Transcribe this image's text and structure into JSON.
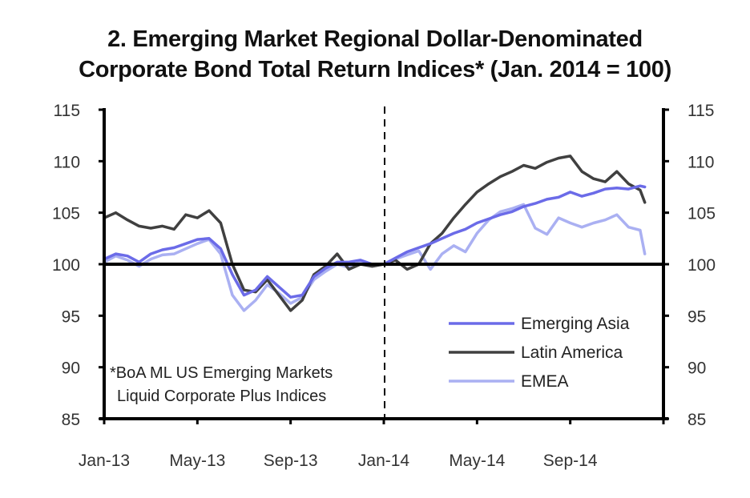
{
  "chart_data": {
    "type": "line",
    "title_line1": "2. Emerging Market Regional Dollar-Denominated",
    "title_line2": "Corporate Bond Total Return Indices* (Jan. 2014 = 100)",
    "xlabel": "",
    "ylabel": "",
    "ylim": [
      85,
      115
    ],
    "yticks": [
      "85",
      "90",
      "95",
      "100",
      "105",
      "110",
      "115"
    ],
    "ytick_values": [
      85,
      90,
      95,
      100,
      105,
      110,
      115
    ],
    "xticks": [
      "Jan-13",
      "May-13",
      "Sep-13",
      "Jan-14",
      "May-14",
      "Sep-14"
    ],
    "xtick_months": [
      0,
      4,
      8,
      12,
      16,
      20
    ],
    "xlim_months": [
      0,
      24
    ],
    "reference_line_y": 100,
    "vertical_marker": {
      "label": "Jan-14",
      "month": 12,
      "style": "dashed"
    },
    "grid": false,
    "legend_position": "bottom-right",
    "footnote_line1": "*BoA ML US Emerging Markets",
    "footnote_line2": "Liquid Corporate Plus Indices",
    "x_months": [
      0,
      0.5,
      1,
      1.5,
      2,
      2.5,
      3,
      3.5,
      4,
      4.5,
      5,
      5.5,
      6,
      6.5,
      7,
      7.5,
      8,
      8.5,
      9,
      9.5,
      10,
      10.5,
      11,
      11.5,
      12,
      12.5,
      13,
      13.5,
      14,
      14.5,
      15,
      15.5,
      16,
      16.5,
      17,
      17.5,
      18,
      18.5,
      19,
      19.5,
      20,
      20.5,
      21,
      21.5,
      22,
      22.5,
      23,
      23.2
    ],
    "series": [
      {
        "name": "Emerging Asia",
        "color": "#6b6be8",
        "values": [
          100.5,
          101.0,
          100.8,
          100.2,
          101.0,
          101.4,
          101.6,
          102.0,
          102.4,
          102.5,
          101.5,
          99.0,
          97.0,
          97.5,
          98.8,
          97.8,
          96.8,
          97.0,
          98.8,
          99.6,
          100.2,
          100.2,
          100.4,
          100.0,
          100.0,
          100.6,
          101.2,
          101.6,
          102.0,
          102.5,
          103.0,
          103.4,
          104.0,
          104.4,
          104.8,
          105.1,
          105.6,
          105.9,
          106.3,
          106.5,
          107.0,
          106.6,
          106.9,
          107.3,
          107.4,
          107.3,
          107.6,
          107.5
        ]
      },
      {
        "name": "Latin America",
        "color": "#404040",
        "values": [
          104.5,
          105.0,
          104.3,
          103.7,
          103.5,
          103.7,
          103.4,
          104.8,
          104.5,
          105.2,
          104.0,
          100.0,
          97.5,
          97.3,
          98.5,
          97.0,
          95.5,
          96.5,
          99.0,
          99.8,
          101.0,
          99.5,
          100.0,
          99.8,
          100.0,
          100.4,
          99.5,
          100.0,
          102.0,
          103.0,
          104.5,
          105.8,
          107.0,
          107.8,
          108.5,
          109.0,
          109.6,
          109.3,
          109.9,
          110.3,
          110.5,
          109.0,
          108.3,
          108.0,
          109.0,
          107.8,
          107.2,
          106.0
        ]
      },
      {
        "name": "EMEA",
        "color": "#aab0f2",
        "values": [
          100.2,
          100.8,
          100.4,
          99.8,
          100.5,
          100.9,
          101.0,
          101.5,
          102.0,
          102.4,
          101.0,
          97.0,
          95.5,
          96.5,
          98.0,
          97.2,
          96.2,
          96.8,
          98.5,
          99.3,
          100.0,
          99.7,
          100.2,
          100.0,
          100.0,
          100.5,
          100.9,
          101.3,
          99.5,
          101.0,
          101.8,
          101.2,
          103.0,
          104.3,
          105.1,
          105.4,
          105.8,
          103.5,
          102.9,
          104.5,
          104.0,
          103.6,
          104.0,
          104.3,
          104.8,
          103.6,
          103.3,
          101.0
        ]
      }
    ]
  }
}
